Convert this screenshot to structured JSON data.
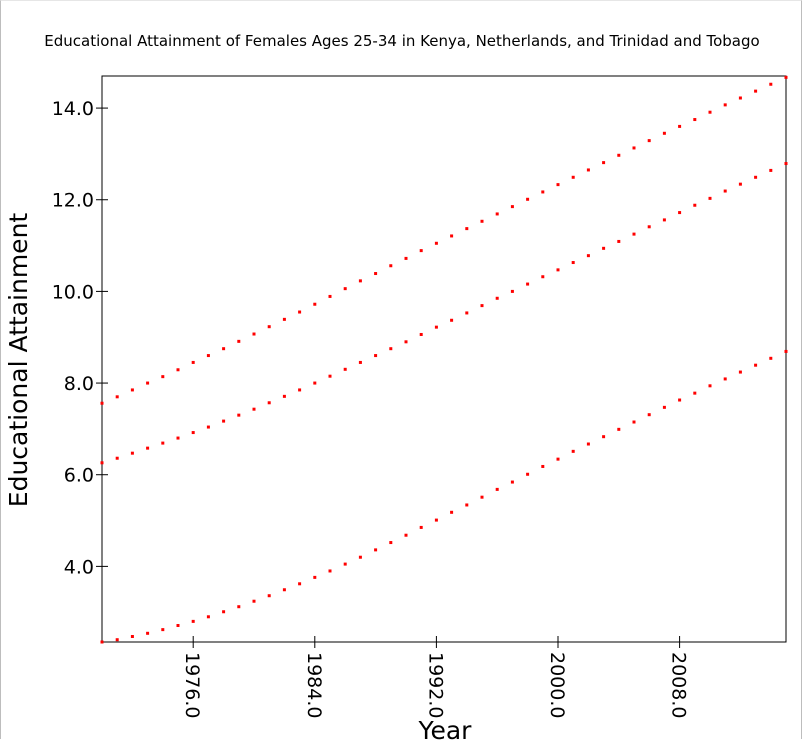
{
  "chart_data": {
    "type": "scatter",
    "title": "Educational Attainment of Females Ages 25-34 in Kenya, Netherlands, and Trinidad and Tobago",
    "xlabel": "Year",
    "ylabel": "Educational Attainment",
    "xlim": [
      1970,
      2015
    ],
    "ylim": [
      2.35,
      14.7
    ],
    "x_ticks": [
      "1976.0",
      "1984.0",
      "1992.0",
      "2000.0",
      "2008.0"
    ],
    "y_ticks": [
      "4.0",
      "6.0",
      "8.0",
      "10.0",
      "12.0",
      "14.0"
    ],
    "marker_color": "#ff0000",
    "grid": false,
    "legend": "none",
    "x": [
      1970,
      1971,
      1972,
      1973,
      1974,
      1975,
      1976,
      1977,
      1978,
      1979,
      1980,
      1981,
      1982,
      1983,
      1984,
      1985,
      1986,
      1987,
      1988,
      1989,
      1990,
      1991,
      1992,
      1993,
      1994,
      1995,
      1996,
      1997,
      1998,
      1999,
      2000,
      2001,
      2002,
      2003,
      2004,
      2005,
      2006,
      2007,
      2008,
      2009,
      2010,
      2011,
      2012,
      2013,
      2014,
      2015
    ],
    "series": [
      {
        "values": [
          7.56,
          7.7,
          7.85,
          8.0,
          8.14,
          8.29,
          8.45,
          8.6,
          8.75,
          8.91,
          9.07,
          9.23,
          9.39,
          9.55,
          9.72,
          9.89,
          10.06,
          10.23,
          10.39,
          10.56,
          10.72,
          10.89,
          11.05,
          11.21,
          11.37,
          11.53,
          11.69,
          11.85,
          12.01,
          12.17,
          12.33,
          12.49,
          12.65,
          12.81,
          12.97,
          13.13,
          13.29,
          13.45,
          13.6,
          13.75,
          13.91,
          14.07,
          14.22,
          14.37,
          14.52,
          14.67
        ]
      },
      {
        "values": [
          6.26,
          6.36,
          6.47,
          6.58,
          6.69,
          6.8,
          6.92,
          7.04,
          7.17,
          7.3,
          7.43,
          7.57,
          7.71,
          7.85,
          8.0,
          8.15,
          8.3,
          8.45,
          8.6,
          8.75,
          8.9,
          9.06,
          9.22,
          9.37,
          9.53,
          9.69,
          9.85,
          10.0,
          10.16,
          10.32,
          10.47,
          10.63,
          10.78,
          10.94,
          11.09,
          11.25,
          11.41,
          11.56,
          11.72,
          11.88,
          12.03,
          12.19,
          12.34,
          12.49,
          12.64,
          12.79
        ]
      },
      {
        "values": [
          2.35,
          2.4,
          2.47,
          2.54,
          2.62,
          2.71,
          2.8,
          2.9,
          3.01,
          3.12,
          3.24,
          3.36,
          3.49,
          3.62,
          3.76,
          3.9,
          4.05,
          4.2,
          4.36,
          4.52,
          4.68,
          4.85,
          5.01,
          5.18,
          5.34,
          5.51,
          5.68,
          5.84,
          6.01,
          6.18,
          6.34,
          6.51,
          6.67,
          6.83,
          6.99,
          7.15,
          7.31,
          7.47,
          7.63,
          7.78,
          7.94,
          8.09,
          8.24,
          8.39,
          8.54,
          8.69
        ]
      }
    ]
  }
}
